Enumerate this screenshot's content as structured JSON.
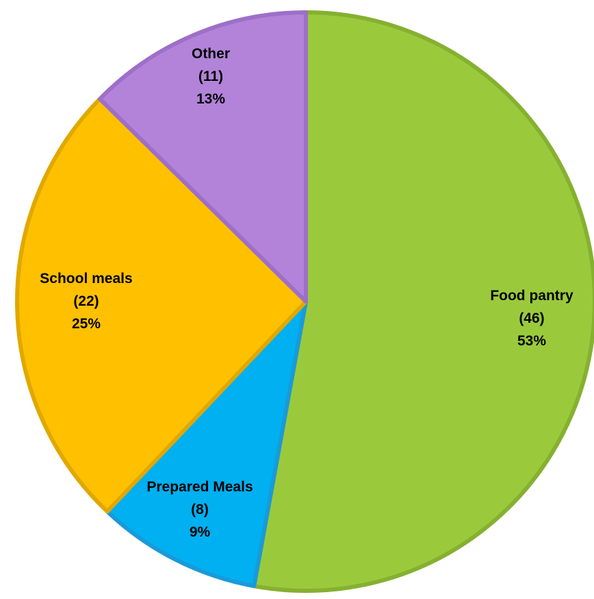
{
  "chart_data": {
    "type": "pie",
    "title": "",
    "start_angle_deg": 0,
    "direction": "clockwise",
    "slices": [
      {
        "label": "Food pantry",
        "count_label": "(46)",
        "value": 46,
        "percent_label": "53%",
        "color": "#9ACA3C",
        "border": "#86B030"
      },
      {
        "label": "Prepared Meals",
        "count_label": "(8)",
        "value": 8,
        "percent_label": "9%",
        "color": "#00B0F0",
        "border": "#1A9AD8"
      },
      {
        "label": "School meals",
        "count_label": "(22)",
        "value": 22,
        "percent_label": "25%",
        "color": "#FFC000",
        "border": "#E0A800"
      },
      {
        "label": "Other",
        "count_label": "(11)",
        "value": 11,
        "percent_label": "13%",
        "color": "#B283D9",
        "border": "#9E6FC8"
      }
    ],
    "legend": "none"
  }
}
